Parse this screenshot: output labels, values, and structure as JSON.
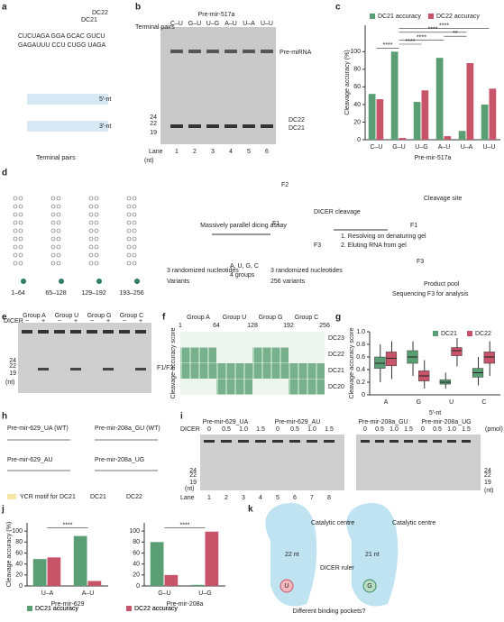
{
  "panel_letters": [
    "a",
    "b",
    "c",
    "d",
    "e",
    "f",
    "g",
    "h",
    "i",
    "j",
    "k"
  ],
  "a": {
    "seq1": "CUCUAGA GGA GCAC GUCU",
    "seq2": "GAGAUUU CCU CUGG UAGA",
    "dc21": "DC21",
    "dc22": "DC22",
    "five": "5′-nt",
    "three": "3′-nt",
    "terminal": "Terminal pairs"
  },
  "b": {
    "title": "Pre-mir-517a",
    "terminal": "Terminal pairs",
    "pairs": [
      "C–U",
      "G–U",
      "U–G",
      "A–U",
      "U–A",
      "U–U"
    ],
    "premirna": "Pre-miRNA",
    "dc22": "DC22",
    "dc21": "DC21",
    "lane": "Lane",
    "lanes": [
      1,
      2,
      3,
      4,
      5,
      6
    ],
    "markers": [
      24,
      22,
      19
    ],
    "nt": "(nt)"
  },
  "d": {
    "ranges": [
      "1–64",
      "65–128",
      "129–192",
      "193–256"
    ],
    "rand1": "3 randomized nucleotides",
    "variants": "Variants",
    "assay": "Massively parallel dicing assay",
    "augc": "A, U, G, C",
    "groups": "4 groups",
    "rand2": "3 randomized nucleotides",
    "v256": "256 variants",
    "f2": "F2",
    "f1": "F1",
    "f3": "F3",
    "cleavage": "DICER cleavage",
    "step1": "1. Resolving on denaturing gel",
    "step2": "2. Eluting RNA from gel",
    "site": "Cleavage site",
    "pf1": "F1",
    "pf3": "F3",
    "pool": "Product pool",
    "seq": "Sequencing F3 for analysis"
  },
  "e": {
    "groups": [
      "Group A",
      "Group U",
      "Group G",
      "Group C"
    ],
    "dicer": "DICER",
    "signs": [
      "−",
      "+",
      "−",
      "+",
      "−",
      "+",
      "−",
      "+"
    ],
    "markers": [
      24,
      22,
      19
    ],
    "nt": "(nt)",
    "f1f3": "F1/F3"
  },
  "f": {
    "groups": [
      "Group A",
      "Group U",
      "Group G",
      "Group C"
    ],
    "ticks": [
      1,
      64,
      128,
      192,
      256
    ],
    "ylabel": "Cleavage-accuracy score",
    "rows": [
      "DC23",
      "DC22",
      "DC21",
      "DC20"
    ]
  },
  "h": {
    "n1": "Pre-mir-629_UA (WT)",
    "n2": "Pre-mir-629_AU",
    "n3": "Pre-mir-208a_GU (WT)",
    "n4": "Pre-mir-208a_UG",
    "ycr": "YCR motif for DC21",
    "dc21": "DC21",
    "dc22": "DC22"
  },
  "i": {
    "names": [
      "Pre-mir-629_UA",
      "Pre-mir-629_AU",
      "Pre-mir-208a_GU",
      "Pre-mir-208a_UG"
    ],
    "dicer": "DICER",
    "doses": [
      "0",
      "0.5",
      "1.0",
      "1.5"
    ],
    "pmol": "(pmol)",
    "lane": "Lane",
    "lanes": [
      1,
      2,
      3,
      4,
      5,
      6,
      7,
      8
    ],
    "markers": [
      24,
      22,
      19
    ],
    "nt": "(nt)"
  },
  "k": {
    "cat1": "Catalytic centre",
    "cat2": "Catalytic centre",
    "ruler": "DICER ruler",
    "nt22": "22 nt",
    "nt21": "21 nt",
    "u": "U",
    "g": "G",
    "pockets": "Different binding pockets?"
  },
  "chart_data": [
    {
      "type": "bar",
      "xlabel": "Pre-mir-517a",
      "ylabel": "Cleavage accuracy (%)",
      "categories": [
        "C–U",
        "G–U",
        "U–G",
        "A–U",
        "U–A",
        "U–U"
      ],
      "series": [
        {
          "name": "DC21 accuracy",
          "color": "#5a9e74",
          "values": [
            52,
            100,
            43,
            93,
            10,
            40
          ]
        },
        {
          "name": "DC22 accuracy",
          "color": "#c8546a",
          "values": [
            46,
            2,
            56,
            4,
            87,
            58
          ]
        }
      ],
      "ylim": [
        0,
        130
      ],
      "yticks": [
        0,
        20,
        40,
        60,
        80,
        100
      ],
      "annotations": [
        "****",
        "****",
        "****",
        "**",
        "****",
        "****"
      ]
    },
    {
      "type": "box",
      "ylabel": "Cleavage-accuracy score",
      "xlabel": "5′-nt",
      "categories": [
        "A",
        "G",
        "U",
        "C"
      ],
      "series": [
        {
          "name": "DC21",
          "color": "#5a9e74",
          "median": [
            0.5,
            0.6,
            0.2,
            0.35
          ],
          "q1": [
            0.42,
            0.5,
            0.17,
            0.28
          ],
          "q3": [
            0.6,
            0.7,
            0.24,
            0.42
          ],
          "low": [
            0.2,
            0.3,
            0.1,
            0.15
          ],
          "high": [
            0.8,
            0.85,
            0.35,
            0.6
          ]
        },
        {
          "name": "DC22",
          "color": "#c8546a",
          "median": [
            0.58,
            0.3,
            0.7,
            0.6
          ],
          "q1": [
            0.46,
            0.22,
            0.62,
            0.5
          ],
          "q3": [
            0.68,
            0.38,
            0.75,
            0.68
          ],
          "low": [
            0.25,
            0.1,
            0.45,
            0.3
          ],
          "high": [
            0.85,
            0.55,
            0.9,
            0.85
          ]
        }
      ],
      "ylim": [
        0,
        1.0
      ],
      "yticks": [
        0,
        0.2,
        0.4,
        0.6,
        0.8,
        {
          "value": 1.0,
          "label": "1.0"
        }
      ]
    },
    {
      "type": "bar",
      "xlabel": "Pre-mir-629",
      "ylabel": "Cleavage accuracy (%)",
      "categories": [
        "U–A",
        "A–U"
      ],
      "series": [
        {
          "name": "DC21 accuracy",
          "color": "#5a9e74",
          "values": [
            49,
            91
          ]
        },
        {
          "name": "DC22 accuracy",
          "color": "#c8546a",
          "values": [
            52,
            9
          ]
        }
      ],
      "ylim": [
        0,
        115
      ],
      "yticks": [
        0,
        20,
        40,
        60,
        80,
        100
      ],
      "annotations": [
        "****"
      ]
    },
    {
      "type": "bar",
      "xlabel": "Pre-mir-208a",
      "categories": [
        "G–U",
        "U–G"
      ],
      "series": [
        {
          "name": "DC21 accuracy",
          "color": "#5a9e74",
          "values": [
            80,
            2
          ]
        },
        {
          "name": "DC22 accuracy",
          "color": "#c8546a",
          "values": [
            20,
            99
          ]
        }
      ],
      "ylim": [
        0,
        115
      ],
      "yticks": [
        0,
        20,
        40,
        60,
        80,
        100
      ],
      "annotations": [
        "****"
      ]
    }
  ]
}
